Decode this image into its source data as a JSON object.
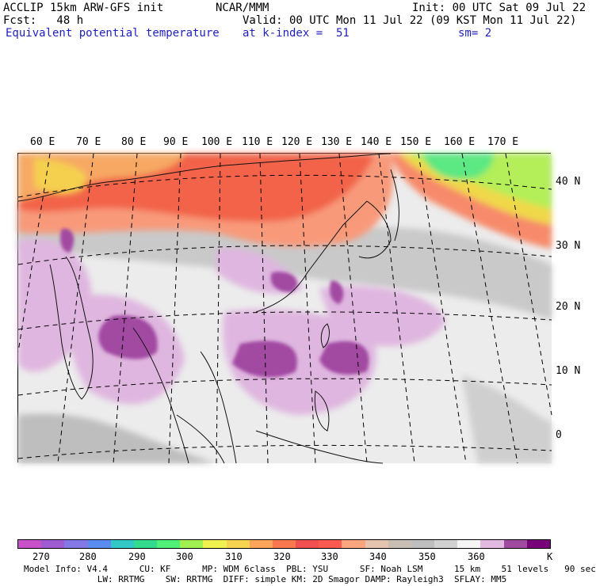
{
  "header": {
    "model": "ACCLIP 15km ARW-GFS init",
    "center": "NCAR/MMM",
    "init": "Init: 00 UTC Sat 09 Jul 22",
    "fcst": "Fcst:   48 h",
    "valid": "Valid: 00 UTC Mon 11 Jul 22 (09 KST Mon 11 Jul 22)",
    "field": "Equivalent potential temperature",
    "level": "at k-index =  51",
    "smooth": "sm= 2"
  },
  "axes": {
    "lon_labels": [
      "60 E",
      "70 E",
      "80 E",
      "90 E",
      "100 E",
      "110 E",
      "120 E",
      "130 E",
      "140 E",
      "150 E",
      "160 E",
      "170 E"
    ],
    "lat_labels": [
      "40 N",
      "30 N",
      "20 N",
      "10 N",
      "0"
    ]
  },
  "colorbar": {
    "colors": [
      "#c850c8",
      "#a05ad2",
      "#8278e6",
      "#5a8cf0",
      "#32c8c8",
      "#32dc8c",
      "#50f078",
      "#a0f050",
      "#f0f050",
      "#f5d250",
      "#faa55a",
      "#fa7850",
      "#f05050",
      "#fa5a50",
      "#faa57d",
      "#e6c3af",
      "#c8beb4",
      "#bebebe",
      "#d2d2d2",
      "#f5f5f5",
      "#e1b9e1",
      "#a04ba0",
      "#780078"
    ],
    "tick_labels": [
      "270",
      "280",
      "290",
      "300",
      "310",
      "320",
      "330",
      "340",
      "350",
      "360"
    ],
    "unit": "K"
  },
  "footer": {
    "line1": "Model Info: V4.4      CU: KF      MP: WDM 6class  PBL: YSU      SF: Noah LSM      15 km    51 levels   90 sec",
    "line2": "              LW: RRTMG    SW: RRTMG  DIFF: simple KM: 2D Smagor DAMP: Rayleigh3  SFLAY: MM5"
  }
}
